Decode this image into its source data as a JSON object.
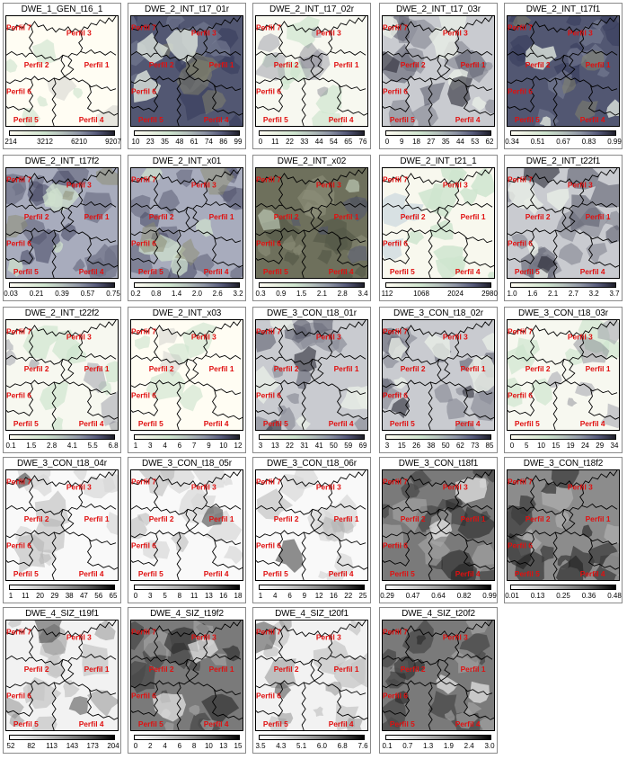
{
  "profile_labels": [
    "Perfil 7",
    "Perfil 3",
    "Perfil 2",
    "Perfil 1",
    "Perfil 6",
    "Perfil 5",
    "Perfil 4"
  ],
  "colors": {
    "label": "#e01010",
    "boundary": "#000000",
    "background": "#fffdf3",
    "green": "#cfe5cf"
  },
  "panels": [
    {
      "title": "DWE_1_GEN_t16_1",
      "ticks": [
        "214",
        "3212",
        "6210",
        "9207"
      ],
      "style": "light"
    },
    {
      "title": "DWE_2_INT_t17_01r",
      "ticks": [
        "10",
        "23",
        "35",
        "48",
        "61",
        "74",
        "86",
        "99"
      ],
      "style": "dark-blue"
    },
    {
      "title": "DWE_2_INT_t17_02r",
      "ticks": [
        "0",
        "11",
        "22",
        "33",
        "44",
        "54",
        "65",
        "76"
      ],
      "style": "light-gray"
    },
    {
      "title": "DWE_2_INT_t17_03r",
      "ticks": [
        "0",
        "9",
        "18",
        "27",
        "35",
        "44",
        "53",
        "62"
      ],
      "style": "mid-gray"
    },
    {
      "title": "DWE_2_INT_t17f1",
      "ticks": [
        "0.34",
        "0.51",
        "0.67",
        "0.83",
        "0.99"
      ],
      "style": "dark-blue"
    },
    {
      "title": "DWE_2_INT_t17f2",
      "ticks": [
        "0.03",
        "0.21",
        "0.39",
        "0.57",
        "0.75"
      ],
      "style": "mid-blue"
    },
    {
      "title": "DWE_2_INT_x01",
      "ticks": [
        "0.2",
        "0.8",
        "1.4",
        "2.0",
        "2.6",
        "3.2"
      ],
      "style": "mid-blue"
    },
    {
      "title": "DWE_2_INT_x02",
      "ticks": [
        "0.3",
        "0.9",
        "1.5",
        "2.1",
        "2.8",
        "3.4"
      ],
      "style": "dark-olive"
    },
    {
      "title": "DWE_2_INT_t21_1",
      "ticks": [
        "112",
        "1068",
        "2024",
        "2980"
      ],
      "style": "green-light"
    },
    {
      "title": "DWE_2_INT_t22f1",
      "ticks": [
        "1.0",
        "1.6",
        "2.1",
        "2.7",
        "3.2",
        "3.7"
      ],
      "style": "mid-gray"
    },
    {
      "title": "DWE_2_INT_t22f2",
      "ticks": [
        "0.1",
        "1.5",
        "2.8",
        "4.1",
        "5.5",
        "6.8"
      ],
      "style": "light-gray"
    },
    {
      "title": "DWE_2_INT_x03",
      "ticks": [
        "1",
        "3",
        "4",
        "6",
        "7",
        "9",
        "10",
        "12"
      ],
      "style": "light"
    },
    {
      "title": "DWE_3_CON_t18_01r",
      "ticks": [
        "3",
        "13",
        "22",
        "31",
        "41",
        "50",
        "59",
        "69"
      ],
      "style": "mid-gray"
    },
    {
      "title": "DWE_3_CON_t18_02r",
      "ticks": [
        "3",
        "15",
        "26",
        "38",
        "50",
        "62",
        "73",
        "85"
      ],
      "style": "mid-gray"
    },
    {
      "title": "DWE_3_CON_t18_03r",
      "ticks": [
        "0",
        "5",
        "10",
        "15",
        "19",
        "24",
        "29",
        "34"
      ],
      "style": "light-gray"
    },
    {
      "title": "DWE_3_CON_t18_04r",
      "ticks": [
        "1",
        "11",
        "20",
        "29",
        "38",
        "47",
        "56",
        "65"
      ],
      "style": "white"
    },
    {
      "title": "DWE_3_CON_t18_05r",
      "ticks": [
        "0",
        "3",
        "5",
        "8",
        "11",
        "13",
        "16",
        "18"
      ],
      "style": "white"
    },
    {
      "title": "DWE_3_CON_t18_06r",
      "ticks": [
        "1",
        "4",
        "6",
        "9",
        "12",
        "16",
        "22",
        "25"
      ],
      "style": "white"
    },
    {
      "title": "DWE_3_CON_t18f1",
      "ticks": [
        "0.29",
        "0.47",
        "0.64",
        "0.82",
        "0.99"
      ],
      "style": "dark-gray"
    },
    {
      "title": "DWE_3_CON_t18f2",
      "ticks": [
        "0.01",
        "0.13",
        "0.25",
        "0.36",
        "0.48"
      ],
      "style": "dark-gray2"
    },
    {
      "title": "DWE_4_SIZ_t19f1",
      "ticks": [
        "52",
        "82",
        "113",
        "143",
        "173",
        "204"
      ],
      "style": "white-gray"
    },
    {
      "title": "DWE_4_SIZ_t19f2",
      "ticks": [
        "0",
        "2",
        "4",
        "6",
        "8",
        "10",
        "13",
        "15"
      ],
      "style": "dark-gray"
    },
    {
      "title": "DWE_4_SIZ_t20f1",
      "ticks": [
        "3.5",
        "4.3",
        "5.1",
        "6.0",
        "6.8",
        "7.6"
      ],
      "style": "white-gray"
    },
    {
      "title": "DWE_4_SIZ_t20f2",
      "ticks": [
        "0.1",
        "0.7",
        "1.3",
        "1.9",
        "2.4",
        "3.0"
      ],
      "style": "dark-gray"
    }
  ]
}
